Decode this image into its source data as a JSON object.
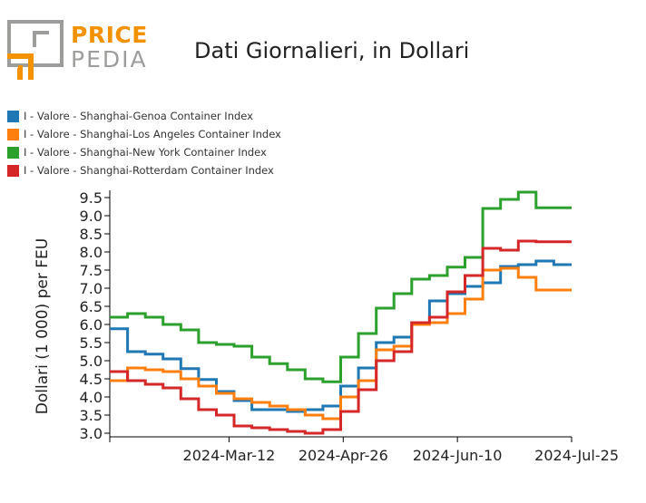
{
  "logo": {
    "top_text": "PRICE",
    "bottom_text": "PEDIA",
    "orange": "#f39200",
    "gray": "#9d9d9c"
  },
  "chart_data": {
    "type": "line",
    "title": "Dati Giornalieri, in Dollari",
    "xlabel": "",
    "ylabel": "Dollari (1 000) per FEU",
    "ylim": [
      2.9,
      9.7
    ],
    "yticks": [
      3.0,
      3.5,
      4.0,
      4.5,
      5.0,
      5.5,
      6.0,
      6.5,
      7.0,
      7.5,
      8.0,
      8.5,
      9.0,
      9.5
    ],
    "ytick_labels": [
      "3.0",
      "3.5",
      "4.0",
      "4.5",
      "5.0",
      "5.5",
      "6.0",
      "6.5",
      "7.0",
      "7.5",
      "8.0",
      "8.5",
      "9.0",
      "9.5"
    ],
    "xlim": [
      "2024-01-25",
      "2024-07-25"
    ],
    "xticks": [
      "2024-01-25",
      "2024-03-12",
      "2024-04-26",
      "2024-06-10",
      "2024-07-25"
    ],
    "xtick_labels": [
      "",
      "2024-Mar-12",
      "2024-Apr-26",
      "2024-Jun-10",
      "2024-Jul-25"
    ],
    "legend_position": "top-left",
    "grid": false,
    "x": [
      "2024-01-25",
      "2024-02-01",
      "2024-02-08",
      "2024-02-15",
      "2024-02-22",
      "2024-02-29",
      "2024-03-07",
      "2024-03-14",
      "2024-03-21",
      "2024-03-28",
      "2024-04-04",
      "2024-04-11",
      "2024-04-18",
      "2024-04-25",
      "2024-05-02",
      "2024-05-09",
      "2024-05-16",
      "2024-05-23",
      "2024-05-30",
      "2024-06-06",
      "2024-06-13",
      "2024-06-20",
      "2024-06-27",
      "2024-07-04",
      "2024-07-11",
      "2024-07-18",
      "2024-07-25"
    ],
    "series": [
      {
        "name": "I - Valore - Shanghai-Genoa Container Index",
        "color": "#1f77b4",
        "values": [
          5.88,
          5.25,
          5.18,
          5.05,
          4.78,
          4.48,
          4.15,
          3.9,
          3.65,
          3.65,
          3.6,
          3.65,
          3.75,
          4.3,
          4.8,
          5.5,
          5.65,
          6.05,
          6.65,
          6.85,
          7.05,
          7.15,
          7.6,
          7.65,
          7.75,
          7.65,
          7.65
        ]
      },
      {
        "name": "I - Valore - Shanghai-Los Angeles Container Index",
        "color": "#ff7f0e",
        "values": [
          4.45,
          4.8,
          4.75,
          4.7,
          4.5,
          4.3,
          4.1,
          3.95,
          3.85,
          3.75,
          3.65,
          3.5,
          3.4,
          4.0,
          4.45,
          5.3,
          5.4,
          6.0,
          6.05,
          6.3,
          6.7,
          7.5,
          7.55,
          7.3,
          6.95,
          6.95,
          6.95
        ]
      },
      {
        "name": "I - Valore - Shanghai-New York Container Index",
        "color": "#2ca02c",
        "values": [
          6.2,
          6.3,
          6.2,
          6.0,
          5.85,
          5.5,
          5.45,
          5.4,
          5.1,
          4.92,
          4.75,
          4.5,
          4.42,
          5.1,
          5.75,
          6.45,
          6.85,
          7.25,
          7.35,
          7.58,
          7.85,
          9.2,
          9.45,
          9.65,
          9.22,
          9.22,
          9.22
        ]
      },
      {
        "name": "I - Valore - Shanghai-Rotterdam Container Index",
        "color": "#d62728",
        "values": [
          4.7,
          4.45,
          4.35,
          4.25,
          3.95,
          3.65,
          3.5,
          3.2,
          3.15,
          3.1,
          3.05,
          3.0,
          3.1,
          3.6,
          4.2,
          5.0,
          5.25,
          6.05,
          6.2,
          6.9,
          7.35,
          8.1,
          8.05,
          8.3,
          8.28,
          8.28,
          8.28
        ]
      }
    ]
  }
}
